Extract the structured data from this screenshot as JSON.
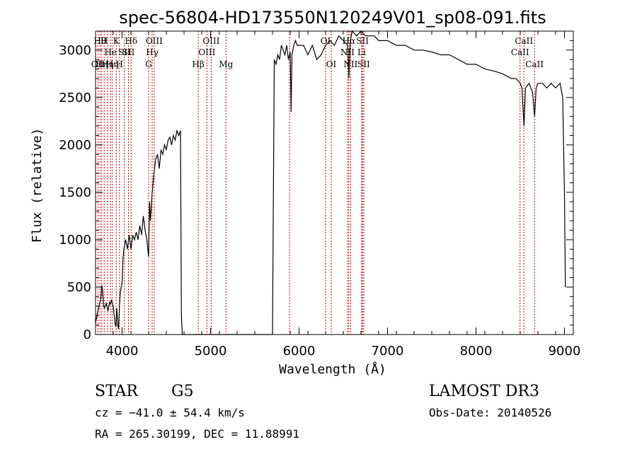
{
  "chart_data": {
    "type": "line",
    "title": "spec-56804-HD173550N120249V01_sp08-091.fits",
    "xlabel": "Wavelength (Å)",
    "ylabel": "Flux (relative)",
    "xlim": [
      3700,
      9100
    ],
    "ylim": [
      0,
      3200
    ],
    "xticks": [
      4000,
      5000,
      6000,
      7000,
      8000,
      9000
    ],
    "yticks": [
      0,
      500,
      1000,
      1500,
      2000,
      2500,
      3000
    ],
    "series": [
      {
        "name": "flux",
        "points": [
          [
            3700,
            120
          ],
          [
            3720,
            220
          ],
          [
            3740,
            300
          ],
          [
            3760,
            380
          ],
          [
            3770,
            520
          ],
          [
            3780,
            460
          ],
          [
            3790,
            300
          ],
          [
            3800,
            280
          ],
          [
            3820,
            330
          ],
          [
            3840,
            250
          ],
          [
            3860,
            340
          ],
          [
            3870,
            320
          ],
          [
            3880,
            360
          ],
          [
            3900,
            300
          ],
          [
            3920,
            120
          ],
          [
            3930,
            80
          ],
          [
            3940,
            280
          ],
          [
            3950,
            100
          ],
          [
            3960,
            60
          ],
          [
            3970,
            300
          ],
          [
            3980,
            450
          ],
          [
            3990,
            500
          ],
          [
            4000,
            560
          ],
          [
            4010,
            800
          ],
          [
            4020,
            900
          ],
          [
            4030,
            950
          ],
          [
            4040,
            1000
          ],
          [
            4060,
            900
          ],
          [
            4080,
            1050
          ],
          [
            4100,
            900
          ],
          [
            4120,
            1050
          ],
          [
            4140,
            1000
          ],
          [
            4160,
            1080
          ],
          [
            4180,
            1000
          ],
          [
            4200,
            1150
          ],
          [
            4220,
            1050
          ],
          [
            4240,
            1250
          ],
          [
            4260,
            1100
          ],
          [
            4280,
            1000
          ],
          [
            4300,
            820
          ],
          [
            4310,
            1400
          ],
          [
            4320,
            1200
          ],
          [
            4340,
            1500
          ],
          [
            4360,
            1700
          ],
          [
            4380,
            1850
          ],
          [
            4400,
            1900
          ],
          [
            4420,
            1750
          ],
          [
            4440,
            1950
          ],
          [
            4460,
            1900
          ],
          [
            4480,
            2000
          ],
          [
            4500,
            1950
          ],
          [
            4520,
            2050
          ],
          [
            4540,
            2080
          ],
          [
            4560,
            2000
          ],
          [
            4580,
            2100
          ],
          [
            4600,
            2050
          ],
          [
            4620,
            2150
          ],
          [
            4640,
            2100
          ],
          [
            4660,
            2150
          ],
          [
            4670,
            200
          ],
          [
            4680,
            0
          ],
          [
            5700,
            0
          ],
          [
            5720,
            2900
          ],
          [
            5740,
            2850
          ],
          [
            5760,
            2950
          ],
          [
            5780,
            2900
          ],
          [
            5800,
            3050
          ],
          [
            5820,
            3000
          ],
          [
            5840,
            2950
          ],
          [
            5860,
            3050
          ],
          [
            5880,
            2900
          ],
          [
            5900,
            2980
          ],
          [
            5910,
            2350
          ],
          [
            5920,
            2950
          ],
          [
            5940,
            3050
          ],
          [
            5960,
            3100
          ],
          [
            5980,
            3050
          ],
          [
            6000,
            3050
          ],
          [
            6050,
            3050
          ],
          [
            6100,
            2950
          ],
          [
            6150,
            3050
          ],
          [
            6200,
            2900
          ],
          [
            6250,
            2950
          ],
          [
            6300,
            3050
          ],
          [
            6350,
            3100
          ],
          [
            6400,
            3050
          ],
          [
            6450,
            3150
          ],
          [
            6500,
            3100
          ],
          [
            6550,
            3050
          ],
          [
            6563,
            2700
          ],
          [
            6580,
            3100
          ],
          [
            6600,
            3200
          ],
          [
            6650,
            3150
          ],
          [
            6700,
            3200
          ],
          [
            6750,
            3150
          ],
          [
            6800,
            3150
          ],
          [
            6850,
            3150
          ],
          [
            6900,
            3100
          ],
          [
            6950,
            3100
          ],
          [
            7000,
            3100
          ],
          [
            7100,
            3050
          ],
          [
            7200,
            3050
          ],
          [
            7300,
            3000
          ],
          [
            7400,
            3000
          ],
          [
            7500,
            2980
          ],
          [
            7600,
            2950
          ],
          [
            7700,
            2950
          ],
          [
            7800,
            2900
          ],
          [
            7900,
            2850
          ],
          [
            8000,
            2850
          ],
          [
            8100,
            2800
          ],
          [
            8200,
            2780
          ],
          [
            8300,
            2750
          ],
          [
            8400,
            2700
          ],
          [
            8450,
            2700
          ],
          [
            8500,
            2650
          ],
          [
            8520,
            2600
          ],
          [
            8542,
            2200
          ],
          [
            8560,
            2600
          ],
          [
            8600,
            2650
          ],
          [
            8640,
            2550
          ],
          [
            8662,
            2300
          ],
          [
            8680,
            2600
          ],
          [
            8700,
            2650
          ],
          [
            8750,
            2650
          ],
          [
            8800,
            2600
          ],
          [
            8850,
            2650
          ],
          [
            8900,
            2600
          ],
          [
            8950,
            2650
          ],
          [
            8980,
            2500
          ],
          [
            9000,
            1500
          ],
          [
            9010,
            500
          ]
        ]
      }
    ],
    "line_markers": [
      {
        "wavelength": 3727,
        "label": "OII",
        "row": 3
      },
      {
        "wavelength": 3750,
        "label": "Hθ",
        "row": 1
      },
      {
        "wavelength": 3770,
        "label": "Hη",
        "row": 3
      },
      {
        "wavelength": 3798,
        "label": "H",
        "row": 1
      },
      {
        "wavelength": 3835,
        "label": "Hη",
        "row": 3
      },
      {
        "wavelength": 3869,
        "label": "He",
        "row": 2
      },
      {
        "wavelength": 3889,
        "label": "Hη",
        "row": 3
      },
      {
        "wavelength": 3934,
        "label": "K",
        "row": 1
      },
      {
        "wavelength": 3970,
        "label": "H",
        "row": 3
      },
      {
        "wavelength": 4026,
        "label": "SII",
        "row": 2
      },
      {
        "wavelength": 4102,
        "label": "Hδ",
        "row": 1
      },
      {
        "wavelength": 4072,
        "label": "SII",
        "row": 2
      },
      {
        "wavelength": 4300,
        "label": "G",
        "row": 3
      },
      {
        "wavelength": 4340,
        "label": "Hγ",
        "row": 2
      },
      {
        "wavelength": 4363,
        "label": "OIII",
        "row": 1
      },
      {
        "wavelength": 4861,
        "label": "Hβ",
        "row": 3
      },
      {
        "wavelength": 4959,
        "label": "OIII",
        "row": 2
      },
      {
        "wavelength": 5007,
        "label": "OIII",
        "row": 1
      },
      {
        "wavelength": 5175,
        "label": "Mg",
        "row": 3
      },
      {
        "wavelength": 5893,
        "label": "",
        "row": 1
      },
      {
        "wavelength": 6300,
        "label": "OI",
        "row": 1
      },
      {
        "wavelength": 6364,
        "label": "OI",
        "row": 3
      },
      {
        "wavelength": 6548,
        "label": "NII",
        "row": 2
      },
      {
        "wavelength": 6563,
        "label": "Hα",
        "row": 1
      },
      {
        "wavelength": 6583,
        "label": "NII",
        "row": 3
      },
      {
        "wavelength": 6707,
        "label": "Li",
        "row": 2
      },
      {
        "wavelength": 6717,
        "label": "SII",
        "row": 1
      },
      {
        "wavelength": 6731,
        "label": "SII",
        "row": 3
      },
      {
        "wavelength": 8498,
        "label": "CaII",
        "row": 2
      },
      {
        "wavelength": 8542,
        "label": "CaII",
        "row": 1
      },
      {
        "wavelength": 8662,
        "label": "CaII",
        "row": 3
      }
    ],
    "marker_color": "#cc0000",
    "line_color": "#000000"
  },
  "footer": {
    "class_label": "STAR",
    "subclass_label": "G5",
    "survey_label": "LAMOST DR3",
    "cz_text": "cz = −41.0 ± 54.4 km/s",
    "obs_date_text": "Obs-Date: 20140526",
    "coords_text": "RA = 265.30199, DEC =  11.88991"
  }
}
